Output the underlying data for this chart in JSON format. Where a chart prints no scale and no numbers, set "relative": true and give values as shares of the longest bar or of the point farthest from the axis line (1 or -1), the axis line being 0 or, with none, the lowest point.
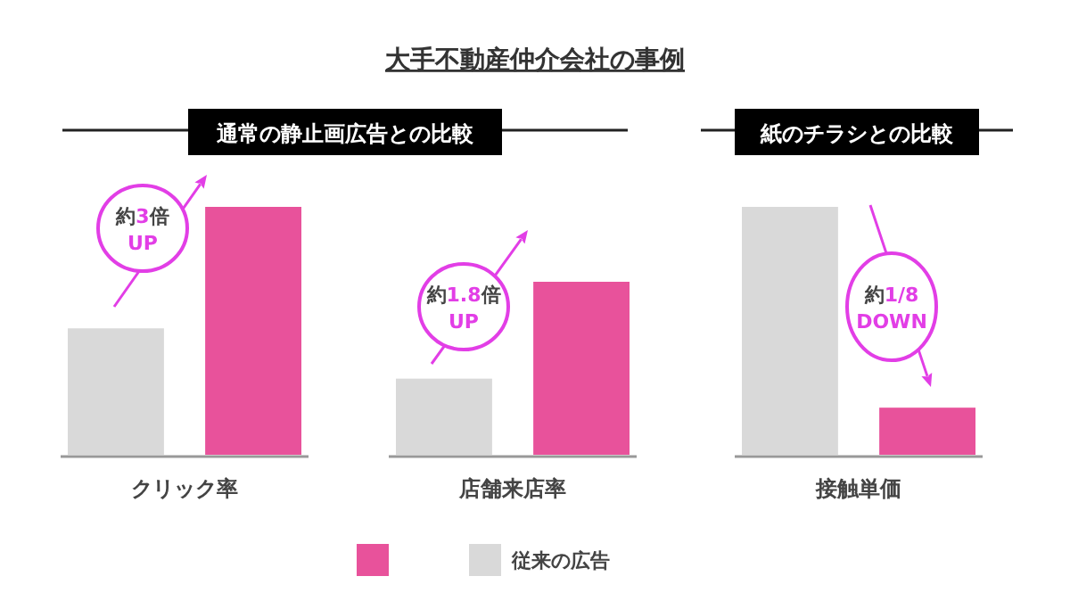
{
  "chart_data": [
    {
      "type": "other",
      "title": "大手不動産仲介会社の事例"
    },
    {
      "type": "bar",
      "subtitle": "通常の静止画広告との比較",
      "xlabel": "クリック率",
      "categories": [
        null,
        null
      ],
      "relative": true,
      "stacked": true,
      "legend": "bottom",
      "series": [
        {
          "color": "#e8529b",
          "values": [
            null,
            1
          ]
        },
        {
          "name": "従来の広告",
          "color": "#d9d9d9",
          "values": [
            0.51,
            null
          ]
        }
      ],
      "annotations": [
        "約3倍\nUP"
      ]
    },
    {
      "type": "bar",
      "xlabel": "店舗来店率",
      "categories": [
        null,
        null
      ],
      "relative": true,
      "stacked": true,
      "series": [
        {
          "color": "#e8529b",
          "values": [
            null,
            1
          ]
        },
        {
          "color": "#d9d9d9",
          "values": [
            0.44,
            null
          ]
        }
      ],
      "annotations": [
        "約1.8倍\nUP"
      ]
    },
    {
      "type": "bar",
      "subtitle": "紙のチラシとの比較",
      "xlabel": "接触単価",
      "categories": [
        null,
        null
      ],
      "relative": true,
      "stacked": true,
      "series": [
        {
          "color": "#e8529b",
          "values": [
            null,
            0.19
          ]
        },
        {
          "color": "#d9d9d9",
          "values": [
            1,
            null
          ]
        }
      ],
      "annotations": [
        "約1/8\nDOWN"
      ]
    }
  ]
}
